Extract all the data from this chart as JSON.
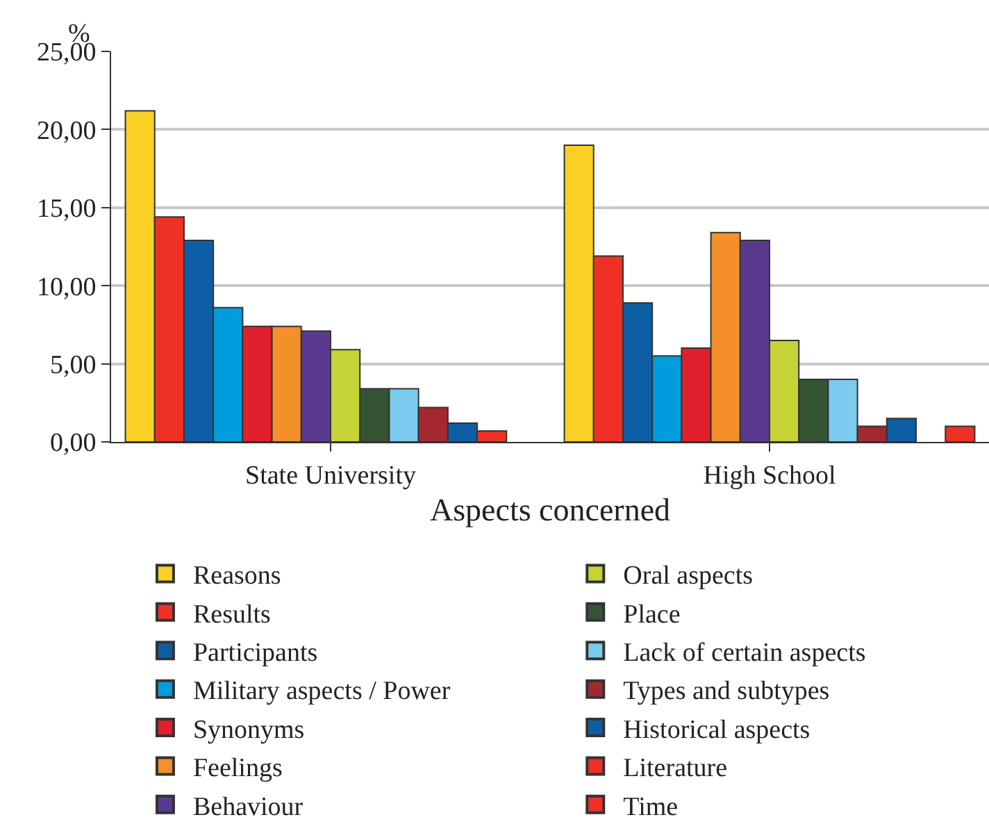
{
  "chart_data": {
    "type": "bar",
    "ylabel": "%",
    "xlabel": "Aspects concerned",
    "categories": [
      "State University",
      "High School"
    ],
    "ylim": [
      0,
      25
    ],
    "yticks": [
      {
        "value": 0,
        "label": "0,00"
      },
      {
        "value": 5,
        "label": "5,00"
      },
      {
        "value": 10,
        "label": "10,00"
      },
      {
        "value": 15,
        "label": "15,00"
      },
      {
        "value": 20,
        "label": "20,00"
      },
      {
        "value": 25,
        "label": "25,00"
      }
    ],
    "grid": "y",
    "legend": "bottom",
    "series": [
      {
        "name": "Reasons",
        "color": "#f9d023",
        "values": [
          21.2,
          19.0
        ]
      },
      {
        "name": "Results",
        "color": "#ee3124",
        "values": [
          14.4,
          11.9
        ]
      },
      {
        "name": "Participants",
        "color": "#0e5ea5",
        "values": [
          12.9,
          8.9
        ]
      },
      {
        "name": "Military aspects / Power",
        "color": "#009ddc",
        "values": [
          8.6,
          5.5
        ]
      },
      {
        "name": "Synonyms",
        "color": "#e21f2d",
        "values": [
          7.4,
          6.0
        ]
      },
      {
        "name": "Feelings",
        "color": "#f3902c",
        "values": [
          7.4,
          13.4
        ]
      },
      {
        "name": "Behaviour",
        "color": "#5a3a8f",
        "values": [
          7.1,
          12.9
        ]
      },
      {
        "name": "Oral aspects",
        "color": "#c5d336",
        "values": [
          5.9,
          6.5
        ]
      },
      {
        "name": "Place",
        "color": "#355434",
        "values": [
          3.4,
          4.0
        ]
      },
      {
        "name": "Lack of certain aspects",
        "color": "#7bcbee",
        "values": [
          3.4,
          4.0
        ]
      },
      {
        "name": "Types and subtypes",
        "color": "#a4282f",
        "values": [
          2.2,
          1.0
        ]
      },
      {
        "name": "Historical aspects",
        "color": "#0e5ea5",
        "values": [
          1.2,
          1.5
        ]
      },
      {
        "name": "Literature",
        "color": "#ee3124",
        "values": [
          0.7,
          null
        ]
      },
      {
        "name": "Time",
        "color": "#ee3124",
        "values": [
          null,
          1.0
        ]
      }
    ]
  }
}
